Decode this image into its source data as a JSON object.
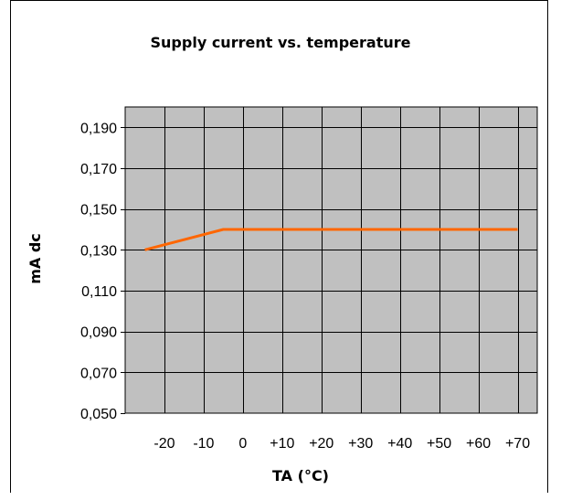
{
  "chart_data": {
    "type": "line",
    "title": "Supply current vs. temperature",
    "xlabel": "TA (°C)",
    "ylabel": "mA dc",
    "categories": [
      "-20",
      "-10",
      "0",
      "+10",
      "+20",
      "+30",
      "+40",
      "+50",
      "+60",
      "+70"
    ],
    "yticks": [
      "0,190",
      "0,170",
      "0,150",
      "0,130",
      "0,110",
      "0,090",
      "0,070",
      "0,050"
    ],
    "ylim": [
      0.05,
      0.2
    ],
    "xlim": [
      -30,
      75
    ],
    "grid": true,
    "series": [
      {
        "x": [
          -25,
          -15,
          -5,
          0,
          10,
          20,
          30,
          40,
          50,
          60,
          70
        ],
        "values": [
          0.13,
          0.135,
          0.14,
          0.14,
          0.14,
          0.14,
          0.14,
          0.14,
          0.14,
          0.14,
          0.14
        ]
      }
    ],
    "colors": {
      "plot_bg": "#c0c0c0",
      "line": "#ff6600",
      "grid": "#000000"
    }
  }
}
